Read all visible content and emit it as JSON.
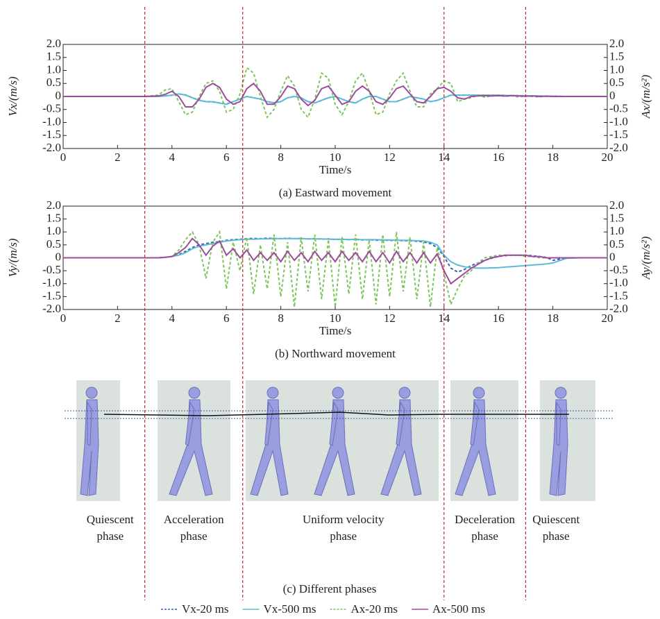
{
  "chart_data": [
    {
      "type": "line",
      "caption": "(a) Eastward movement",
      "x_label": "Time/s",
      "y_label": "Vx/(m/s)",
      "y2_label": "Ax/(m/s²)",
      "xlim": [
        0,
        20
      ],
      "xticks": [
        0,
        2,
        4,
        6,
        8,
        10,
        12,
        14,
        16,
        18,
        20
      ],
      "ylim": [
        -2,
        2
      ],
      "yticks": [
        {
          "value": 2,
          "label": "2.0"
        },
        1.5,
        {
          "value": 1,
          "label": "1.0"
        },
        0.5,
        0,
        -0.5,
        {
          "value": -1,
          "label": "-1.0"
        },
        -1.5,
        {
          "value": -2,
          "label": "-2.0"
        }
      ],
      "y2lim": [
        -2,
        2
      ],
      "y2ticks": [
        {
          "value": 2,
          "label": "2.0"
        },
        1.5,
        {
          "value": 1,
          "label": "1.0"
        },
        0.5,
        0,
        -0.5,
        {
          "value": -1,
          "label": "-1.0"
        },
        -1.5,
        {
          "value": -2,
          "label": "-2.0"
        }
      ],
      "legend": "bottom",
      "x": [
        0,
        1,
        2,
        3,
        3.5,
        3.75,
        4,
        4.25,
        4.5,
        4.75,
        5,
        5.25,
        5.5,
        5.75,
        6,
        6.25,
        6.5,
        6.75,
        7,
        7.25,
        7.5,
        7.75,
        8,
        8.25,
        8.5,
        8.75,
        9,
        9.25,
        9.5,
        9.75,
        10,
        10.25,
        10.5,
        10.75,
        11,
        11.25,
        11.5,
        11.75,
        12,
        12.25,
        12.5,
        12.75,
        13,
        13.25,
        13.5,
        13.75,
        14,
        14.25,
        14.5,
        14.75,
        15,
        15.25,
        15.5,
        15.75,
        16,
        16.25,
        16.5,
        16.75,
        17,
        17.25,
        17.5,
        17.75,
        18,
        18.5,
        19,
        19.5,
        20
      ],
      "series": [
        {
          "name": "Vx-20 ms",
          "color": "#3a5fb0",
          "dashed": true,
          "values": [
            0,
            0,
            0,
            0,
            0,
            0.02,
            0.05,
            0.1,
            0.06,
            -0.05,
            -0.14,
            -0.2,
            -0.21,
            -0.25,
            -0.29,
            -0.2,
            -0.1,
            0,
            -0.05,
            -0.1,
            -0.2,
            -0.24,
            -0.2,
            -0.05,
            0,
            -0.05,
            -0.2,
            -0.25,
            -0.15,
            -0.05,
            0,
            -0.1,
            -0.2,
            -0.25,
            -0.1,
            0,
            0,
            -0.1,
            -0.2,
            -0.2,
            -0.1,
            0,
            -0.05,
            -0.1,
            -0.2,
            -0.15,
            -0.05,
            0.05,
            0.05,
            0.05,
            0.05,
            0.05,
            0.05,
            0.05,
            0.05,
            0.04,
            0.04,
            0.03,
            0.03,
            0.02,
            0.02,
            0.01,
            0.01,
            0,
            0,
            0,
            0
          ]
        },
        {
          "name": "Vx-500 ms",
          "color": "#5bbcd6",
          "values": [
            0,
            0,
            0,
            0,
            0,
            0.02,
            0.05,
            0.1,
            0.05,
            -0.05,
            -0.15,
            -0.2,
            -0.2,
            -0.25,
            -0.3,
            -0.2,
            -0.1,
            0,
            -0.05,
            -0.1,
            -0.2,
            -0.25,
            -0.2,
            -0.05,
            0,
            -0.05,
            -0.2,
            -0.25,
            -0.15,
            -0.05,
            0,
            -0.1,
            -0.2,
            -0.25,
            -0.1,
            0,
            0,
            -0.1,
            -0.2,
            -0.2,
            -0.1,
            0,
            -0.05,
            -0.1,
            -0.2,
            -0.15,
            -0.05,
            0.05,
            0.05,
            0.05,
            0.05,
            0.05,
            0.05,
            0.05,
            0.05,
            0.04,
            0.04,
            0.03,
            0.03,
            0.02,
            0.02,
            0.01,
            0.01,
            0,
            0,
            0,
            0
          ]
        },
        {
          "name": "Ax-20 ms",
          "color": "#7dc45a",
          "dashed": true,
          "axis": "y2",
          "values": [
            0,
            0,
            0,
            0,
            0.05,
            0.25,
            0.3,
            -0.2,
            -0.7,
            -0.6,
            0,
            0.5,
            0.6,
            0.2,
            -0.6,
            -0.5,
            0.1,
            1.1,
            0.9,
            0,
            -0.8,
            -0.5,
            0.2,
            0.8,
            0.4,
            -0.5,
            -0.8,
            -0.1,
            0.9,
            0.7,
            -0.3,
            -0.7,
            -0.2,
            0.6,
            0.9,
            0.2,
            -0.7,
            -0.6,
            0.1,
            0.6,
            0.9,
            0.2,
            -0.4,
            -0.4,
            0.1,
            0.3,
            0.6,
            0.5,
            -0.2,
            -0.1,
            -0.05,
            0.05,
            -0.03,
            0.02,
            0.04,
            0,
            0.03,
            -0.02,
            0.02,
            0,
            -0.02,
            0.02,
            0,
            0,
            0,
            0,
            0
          ]
        },
        {
          "name": "Ax-500 ms",
          "color": "#a04a9f",
          "axis": "y2",
          "values": [
            0,
            0,
            0,
            0,
            0.02,
            0.08,
            0.2,
            0,
            -0.4,
            -0.4,
            -0.1,
            0.35,
            0.5,
            0.35,
            -0.1,
            -0.3,
            -0.2,
            0.3,
            0.5,
            0.2,
            -0.3,
            -0.3,
            0,
            0.4,
            0.3,
            -0.1,
            -0.35,
            -0.15,
            0.3,
            0.4,
            0.05,
            -0.3,
            -0.2,
            0.2,
            0.4,
            0.2,
            -0.2,
            -0.3,
            -0.05,
            0.3,
            0.4,
            0.1,
            -0.2,
            -0.25,
            0,
            0.3,
            0.35,
            0.2,
            -0.05,
            -0.1,
            0,
            0.02,
            0.03,
            0.02,
            0.03,
            0.02,
            0.03,
            0.02,
            0.01,
            0.02,
            0,
            0.01,
            0,
            0,
            0,
            0,
            0
          ]
        }
      ]
    },
    {
      "type": "line",
      "caption": "(b) Northward movement",
      "x_label": "Time/s",
      "y_label": "Vy/(m/s)",
      "y2_label": "Ay/(m/s²)",
      "xlim": [
        0,
        20
      ],
      "xticks": [
        0,
        2,
        4,
        6,
        8,
        10,
        12,
        14,
        16,
        18,
        20
      ],
      "ylim": [
        -2,
        2
      ],
      "yticks": [
        {
          "value": 2,
          "label": "2.0"
        },
        1.5,
        {
          "value": 1,
          "label": "1.0"
        },
        0.5,
        0,
        -0.5,
        {
          "value": -1,
          "label": "-1.0"
        },
        -1.5,
        {
          "value": -2,
          "label": "-2.0"
        }
      ],
      "y2lim": [
        -2,
        2
      ],
      "y2ticks": [
        {
          "value": 2,
          "label": "2.0"
        },
        1.5,
        {
          "value": 1,
          "label": "1.0"
        },
        0.5,
        0,
        -0.5,
        {
          "value": -1,
          "label": "-1.0"
        },
        -1.5,
        {
          "value": -2,
          "label": "-2.0"
        }
      ],
      "x": [
        0,
        1,
        2,
        3,
        3.5,
        3.75,
        4,
        4.25,
        4.5,
        4.75,
        5,
        5.25,
        5.5,
        5.75,
        6,
        6.25,
        6.5,
        6.75,
        7,
        7.25,
        7.5,
        7.75,
        8,
        8.25,
        8.5,
        8.75,
        9,
        9.25,
        9.5,
        9.75,
        10,
        10.25,
        10.5,
        10.75,
        11,
        11.25,
        11.5,
        11.75,
        12,
        12.25,
        12.5,
        12.75,
        13,
        13.25,
        13.5,
        13.75,
        14,
        14.25,
        14.5,
        14.75,
        15,
        15.25,
        15.5,
        15.75,
        16,
        16.25,
        16.5,
        16.75,
        17,
        17.25,
        17.5,
        17.75,
        18,
        18.5,
        19,
        19.5,
        20
      ],
      "series": [
        {
          "color": "#3a5fb0",
          "dashed": true,
          "values": [
            0,
            0,
            0,
            0,
            0,
            0.02,
            0.05,
            0.12,
            0.25,
            0.4,
            0.5,
            0.55,
            0.6,
            0.62,
            0.68,
            0.7,
            0.72,
            0.74,
            0.75,
            0.74,
            0.76,
            0.75,
            0.74,
            0.76,
            0.74,
            0.75,
            0.73,
            0.74,
            0.72,
            0.73,
            0.71,
            0.72,
            0.7,
            0.72,
            0.69,
            0.7,
            0.68,
            0.69,
            0.67,
            0.68,
            0.66,
            0.66,
            0.64,
            0.62,
            0.55,
            0.4,
            0.05,
            -0.4,
            -0.55,
            -0.45,
            -0.3,
            -0.2,
            -0.1,
            -0.02,
            0.05,
            0.08,
            0.1,
            0.1,
            0.1,
            0.08,
            0.05,
            0.02,
            -0.1,
            0,
            0,
            0,
            0
          ]
        },
        {
          "color": "#5bbcd6",
          "values": [
            0,
            0,
            0,
            0,
            0,
            0.02,
            0.05,
            0.1,
            0.2,
            0.35,
            0.45,
            0.5,
            0.55,
            0.6,
            0.65,
            0.68,
            0.7,
            0.72,
            0.72,
            0.73,
            0.73,
            0.74,
            0.74,
            0.74,
            0.74,
            0.74,
            0.73,
            0.73,
            0.73,
            0.72,
            0.72,
            0.72,
            0.71,
            0.71,
            0.7,
            0.7,
            0.7,
            0.69,
            0.69,
            0.68,
            0.68,
            0.67,
            0.66,
            0.65,
            0.6,
            0.5,
            0.1,
            -0.15,
            -0.28,
            -0.35,
            -0.38,
            -0.4,
            -0.4,
            -0.39,
            -0.38,
            -0.36,
            -0.34,
            -0.32,
            -0.3,
            -0.28,
            -0.26,
            -0.24,
            -0.2,
            -0.02,
            0,
            0,
            0
          ]
        },
        {
          "color": "#7dc45a",
          "dashed": true,
          "axis": "y2",
          "values": [
            0,
            0,
            0,
            0,
            0,
            0.02,
            0.05,
            0.3,
            0.7,
            1.0,
            0.5,
            -0.8,
            0.6,
            1.0,
            -1.2,
            0.6,
            -0.5,
            0.8,
            -1.4,
            0.5,
            -1.2,
            0.9,
            -1.5,
            0.6,
            -1.9,
            0.8,
            -1.3,
            0.9,
            -1.6,
            0.7,
            -1.9,
            0.8,
            -1.4,
            0.9,
            -1.6,
            0.7,
            -1.8,
            0.9,
            -1.5,
            1.0,
            -1.3,
            0.8,
            -1.6,
            0.6,
            -1.9,
            0.4,
            -0.6,
            -1.8,
            -1.2,
            -0.7,
            -0.5,
            -0.2,
            0,
            0.05,
            0.1,
            0.1,
            0.1,
            0.1,
            0.05,
            0.05,
            0,
            0,
            0,
            0,
            0,
            0,
            0
          ]
        },
        {
          "color": "#a04a9f",
          "axis": "y2",
          "values": [
            0,
            0,
            0,
            0,
            0,
            0.02,
            0.05,
            0.2,
            0.4,
            0.75,
            0.5,
            0.1,
            0.45,
            0.65,
            0.1,
            0.35,
            0,
            0.3,
            -0.1,
            0.2,
            -0.1,
            0.2,
            -0.15,
            0.25,
            -0.1,
            0.2,
            -0.15,
            0.25,
            -0.1,
            0.2,
            -0.15,
            0.25,
            -0.1,
            0.2,
            -0.15,
            0.25,
            -0.15,
            0.2,
            -0.2,
            0.25,
            -0.15,
            0.2,
            -0.2,
            0.2,
            -0.2,
            0.15,
            -0.5,
            -1.0,
            -0.8,
            -0.6,
            -0.4,
            -0.25,
            -0.1,
            0,
            0.05,
            0.1,
            0.1,
            0.1,
            0.1,
            0.05,
            0.05,
            0,
            0,
            0,
            0,
            0,
            0
          ]
        }
      ]
    }
  ],
  "phases": {
    "caption": "(c) Different phases",
    "boundaries": [
      3,
      6.6,
      14,
      17
    ],
    "labels": [
      [
        "Quiescent",
        "phase"
      ],
      [
        "Acceleration",
        "phase"
      ],
      [
        "Uniform velocity",
        "phase"
      ],
      [
        "Deceleration",
        "phase"
      ],
      [
        "Quiescent",
        "phase"
      ]
    ]
  }
}
